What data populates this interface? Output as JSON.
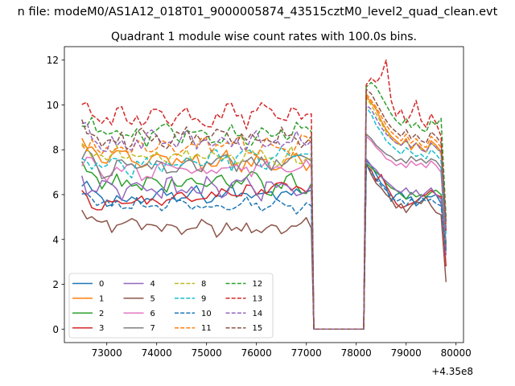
{
  "figure": {
    "suptitle": "n file: modeM0/AS1A12_018T01_9000005874_43515cztM0_level2_quad_clean.evt",
    "title": "Quadrant 1 module wise count rates with 100.0s bins."
  },
  "chart_data": {
    "type": "line",
    "title": "Quadrant 1 module wise count rates with 100.0s bins.",
    "xlabel": "",
    "ylabel": "",
    "x_offset_label": "+4.35e8",
    "xlim": [
      72150,
      80150
    ],
    "ylim": [
      -0.6,
      12.6
    ],
    "x_ticks": [
      73000,
      74000,
      75000,
      76000,
      77000,
      78000,
      79000,
      80000
    ],
    "x_tick_labels": [
      "73000",
      "74000",
      "75000",
      "76000",
      "77000",
      "78000",
      "79000",
      "80000"
    ],
    "y_ticks": [
      0,
      2,
      4,
      6,
      8,
      10,
      12
    ],
    "y_tick_labels": [
      "0",
      "2",
      "4",
      "6",
      "8",
      "10",
      "12"
    ],
    "grid": false,
    "legend_position": "lower-left",
    "legend_columns": 4,
    "x_start": 72500,
    "x_step": 100,
    "gap_interval": [
      77150,
      78150
    ],
    "series": [
      {
        "name": "0",
        "color": "#1f77b4",
        "dash": "solid",
        "seg1_level": 5.7,
        "seg1_end": 6.2,
        "seg1_amp": 0.3,
        "seg2": [
          7.5,
          7.3,
          6.9,
          6.5,
          6.3,
          5.7,
          6.0,
          6.1,
          5.8,
          5.9,
          5.5,
          5.7,
          5.9,
          5.9,
          6.0,
          5.6,
          3.9
        ]
      },
      {
        "name": "1",
        "color": "#ff7f0e",
        "dash": "solid",
        "seg1_level": 7.6,
        "seg1_end": 7.4,
        "seg1_amp": 0.35,
        "seg2": [
          10.4,
          10.1,
          9.8,
          9.3,
          8.9,
          8.6,
          8.4,
          8.2,
          8.5,
          8.0,
          8.3,
          8.1,
          7.9,
          8.4,
          8.2,
          7.9,
          4.5
        ]
      },
      {
        "name": "2",
        "color": "#2ca02c",
        "dash": "solid",
        "seg1_level": 6.5,
        "seg1_end": 6.5,
        "seg1_amp": 0.35,
        "seg2": [
          7.4,
          7.2,
          7.0,
          6.8,
          6.5,
          6.3,
          6.2,
          6.0,
          5.8,
          6.1,
          5.9,
          6.0,
          5.9,
          6.1,
          6.2,
          6.0,
          3.8
        ]
      },
      {
        "name": "3",
        "color": "#d62728",
        "dash": "solid",
        "seg1_level": 5.4,
        "seg1_end": 6.4,
        "seg1_amp": 0.25,
        "seg2": [
          7.3,
          7.1,
          6.6,
          6.9,
          6.4,
          6.0,
          5.6,
          5.4,
          5.5,
          5.6,
          5.7,
          5.9,
          6.0,
          6.2,
          6.0,
          5.9,
          2.8
        ]
      },
      {
        "name": "4",
        "color": "#9467bd",
        "dash": "solid",
        "seg1_level": 6.1,
        "seg1_end": 6.4,
        "seg1_amp": 0.4,
        "seg2": [
          7.6,
          7.3,
          7.1,
          6.8,
          6.6,
          6.4,
          6.2,
          6.1,
          6.3,
          6.0,
          6.2,
          5.9,
          6.1,
          6.3,
          6.0,
          5.8,
          3.3
        ]
      },
      {
        "name": "5",
        "color": "#8c564b",
        "dash": "solid",
        "seg1_level": 4.6,
        "seg1_end": 4.5,
        "seg1_amp": 0.3,
        "seg2": [
          7.4,
          6.9,
          6.5,
          6.3,
          6.0,
          5.8,
          5.4,
          5.6,
          5.2,
          5.5,
          5.7,
          5.6,
          5.9,
          5.5,
          5.2,
          5.1,
          2.1
        ]
      },
      {
        "name": "6",
        "color": "#e377c2",
        "dash": "solid",
        "seg1_level": 7.0,
        "seg1_end": 7.2,
        "seg1_amp": 0.3,
        "seg2": [
          8.6,
          8.4,
          8.1,
          7.9,
          7.6,
          7.5,
          7.3,
          7.4,
          7.2,
          7.5,
          7.3,
          7.4,
          7.2,
          7.5,
          7.3,
          7.0,
          3.6
        ]
      },
      {
        "name": "7",
        "color": "#7f7f7f",
        "dash": "solid",
        "seg1_level": 7.1,
        "seg1_end": 7.5,
        "seg1_amp": 0.3,
        "seg2": [
          8.7,
          8.5,
          8.2,
          8.0,
          7.8,
          7.7,
          7.5,
          7.6,
          7.4,
          7.7,
          7.5,
          7.6,
          7.4,
          7.6,
          7.5,
          7.2,
          3.7
        ]
      },
      {
        "name": "8",
        "color": "#bcbd22",
        "dash": "dashed",
        "seg1_level": 7.7,
        "seg1_end": 7.6,
        "seg1_amp": 0.35,
        "seg2": [
          10.3,
          10.0,
          9.6,
          9.2,
          8.8,
          8.5,
          8.3,
          8.2,
          8.4,
          8.1,
          8.3,
          8.0,
          7.9,
          8.3,
          8.1,
          7.8,
          4.4
        ]
      },
      {
        "name": "9",
        "color": "#17becf",
        "dash": "dashed",
        "seg1_level": 7.1,
        "seg1_end": 7.8,
        "seg1_amp": 0.35,
        "seg2": [
          9.9,
          9.6,
          9.1,
          8.8,
          8.4,
          8.2,
          8.0,
          7.8,
          8.1,
          7.9,
          7.7,
          7.8,
          7.6,
          8.0,
          7.8,
          7.5,
          4.2
        ]
      },
      {
        "name": "10",
        "color": "#1f77b4",
        "dash": "dashed",
        "seg1_level": 5.6,
        "seg1_end": 5.5,
        "seg1_amp": 0.25,
        "seg2": [
          7.3,
          7.0,
          6.7,
          6.4,
          6.2,
          5.9,
          5.7,
          5.8,
          5.5,
          5.8,
          5.6,
          5.9,
          5.7,
          5.8,
          5.6,
          5.5,
          3.5
        ]
      },
      {
        "name": "11",
        "color": "#ff7f0e",
        "dash": "dashed",
        "seg1_level": 7.9,
        "seg1_end": 8.3,
        "seg1_amp": 0.35,
        "seg2": [
          10.5,
          10.2,
          9.9,
          9.5,
          9.1,
          8.8,
          8.6,
          8.4,
          8.7,
          8.3,
          8.5,
          8.2,
          8.1,
          8.6,
          8.4,
          8.1,
          4.6
        ]
      },
      {
        "name": "12",
        "color": "#2ca02c",
        "dash": "dashed",
        "seg1_level": 8.6,
        "seg1_end": 8.8,
        "seg1_amp": 0.35,
        "seg2": [
          10.8,
          11.0,
          10.8,
          10.4,
          10.0,
          9.6,
          9.3,
          9.1,
          9.4,
          9.0,
          9.2,
          8.9,
          8.8,
          9.3,
          9.1,
          9.4,
          5.0
        ]
      },
      {
        "name": "13",
        "color": "#d62728",
        "dash": "dashed",
        "seg1_level": 9.3,
        "seg1_end": 9.6,
        "seg1_amp": 0.4,
        "seg2": [
          10.9,
          11.2,
          11.0,
          11.3,
          12.0,
          10.2,
          9.5,
          9.8,
          9.2,
          9.6,
          10.2,
          9.3,
          9.0,
          9.6,
          9.2,
          8.6,
          4.3
        ]
      },
      {
        "name": "14",
        "color": "#9467bd",
        "dash": "dashed",
        "seg1_level": 8.3,
        "seg1_end": 8.4,
        "seg1_amp": 0.35,
        "seg2": [
          10.0,
          9.8,
          9.4,
          9.0,
          8.7,
          8.5,
          8.3,
          8.2,
          8.4,
          8.1,
          8.3,
          8.0,
          7.9,
          8.3,
          8.1,
          7.9,
          4.4
        ]
      },
      {
        "name": "15",
        "color": "#8c564b",
        "dash": "dashed",
        "seg1_level": 8.5,
        "seg1_end": 8.6,
        "seg1_amp": 0.35,
        "seg2": [
          10.7,
          10.5,
          10.1,
          9.7,
          9.3,
          9.0,
          8.8,
          8.6,
          8.9,
          8.5,
          8.7,
          8.4,
          8.3,
          8.8,
          8.6,
          8.3,
          4.8
        ]
      }
    ]
  }
}
